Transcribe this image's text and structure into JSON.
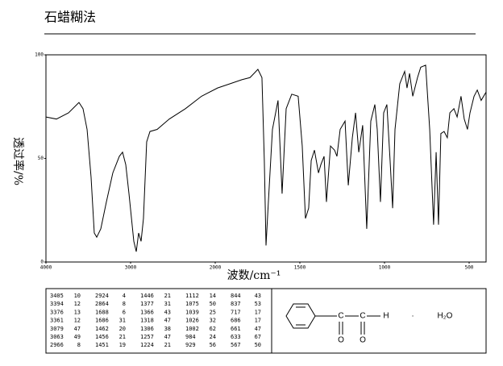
{
  "chart_data": {
    "type": "line",
    "title": "石蜡糊法",
    "y_label": "透过率/%",
    "x_label": "波数/cm⁻¹",
    "x": [
      4000,
      3876,
      3733,
      3610,
      3562,
      3514,
      3467,
      3429,
      3400,
      3352,
      3286,
      3210,
      3133,
      3095,
      3057,
      3019,
      2962,
      2933,
      2905,
      2876,
      2848,
      2810,
      2771,
      2686,
      2543,
      2352,
      2162,
      1986,
      1914,
      1843,
      1795,
      1771,
      1748,
      1724,
      1710,
      1700,
      1686,
      1662,
      1629,
      1605,
      1581,
      1548,
      1510,
      1486,
      1467,
      1448,
      1433,
      1414,
      1390,
      1376,
      1357,
      1343,
      1319,
      1295,
      1281,
      1262,
      1233,
      1214,
      1190,
      1171,
      1152,
      1129,
      1105,
      1081,
      1057,
      1043,
      1024,
      1005,
      986,
      967,
      952,
      938,
      910,
      881,
      867,
      852,
      833,
      805,
      786,
      757,
      733,
      710,
      695,
      681,
      667,
      648,
      629,
      614,
      590,
      571,
      548,
      529,
      510,
      495,
      471,
      452,
      429,
      400
    ],
    "values": [
      70,
      69,
      72,
      77,
      74,
      64,
      41,
      14,
      12,
      16,
      29,
      43,
      51,
      53,
      47,
      33,
      10,
      5,
      14,
      10,
      21,
      58,
      63,
      64,
      69,
      74,
      80,
      84,
      86,
      88,
      89,
      91,
      93,
      89,
      49,
      8,
      29,
      64,
      78,
      33,
      74,
      81,
      80,
      56,
      21,
      26,
      49,
      54,
      43,
      47,
      51,
      29,
      56,
      54,
      51,
      64,
      68,
      37,
      60,
      72,
      53,
      66,
      16,
      68,
      76,
      64,
      29,
      72,
      76,
      49,
      26,
      64,
      86,
      92,
      84,
      91,
      80,
      89,
      94,
      95,
      64,
      18,
      53,
      18,
      62,
      63,
      60,
      72,
      74,
      70,
      80,
      69,
      64,
      72,
      80,
      83,
      78,
      82
    ],
    "color": "#000000",
    "xlim": [
      4000,
      400
    ],
    "xticks": [
      4000,
      3000,
      2000,
      1500,
      1000,
      500
    ],
    "ylim": [
      0,
      100
    ],
    "yticks": [
      0,
      50,
      100
    ]
  },
  "peak_table": {
    "columns": [
      [
        [
          3405,
          10
        ],
        [
          3394,
          12
        ],
        [
          3376,
          13
        ],
        [
          3361,
          12
        ],
        [
          3079,
          47
        ],
        [
          3063,
          49
        ],
        [
          2966,
          8
        ]
      ],
      [
        [
          2924,
          4
        ],
        [
          2864,
          8
        ],
        [
          1688,
          6
        ],
        [
          1686,
          31
        ],
        [
          1462,
          20
        ],
        [
          1456,
          21
        ],
        [
          1451,
          19
        ]
      ],
      [
        [
          1446,
          21
        ],
        [
          1377,
          31
        ],
        [
          1366,
          43
        ],
        [
          1318,
          47
        ],
        [
          1306,
          38
        ],
        [
          1257,
          47
        ],
        [
          1224,
          21
        ]
      ],
      [
        [
          1112,
          14
        ],
        [
          1075,
          50
        ],
        [
          1039,
          25
        ],
        [
          1026,
          32
        ],
        [
          1002,
          62
        ],
        [
          984,
          24
        ],
        [
          929,
          56
        ]
      ],
      [
        [
          844,
          43
        ],
        [
          837,
          53
        ],
        [
          717,
          17
        ],
        [
          686,
          17
        ],
        [
          661,
          47
        ],
        [
          633,
          67
        ],
        [
          567,
          50
        ]
      ]
    ]
  },
  "structure": {
    "carbon1": "C",
    "carbon2": "C",
    "oxygen1": "O",
    "oxygen2": "O",
    "hydrogen": "H",
    "dot": "·",
    "water": "H₂O"
  }
}
